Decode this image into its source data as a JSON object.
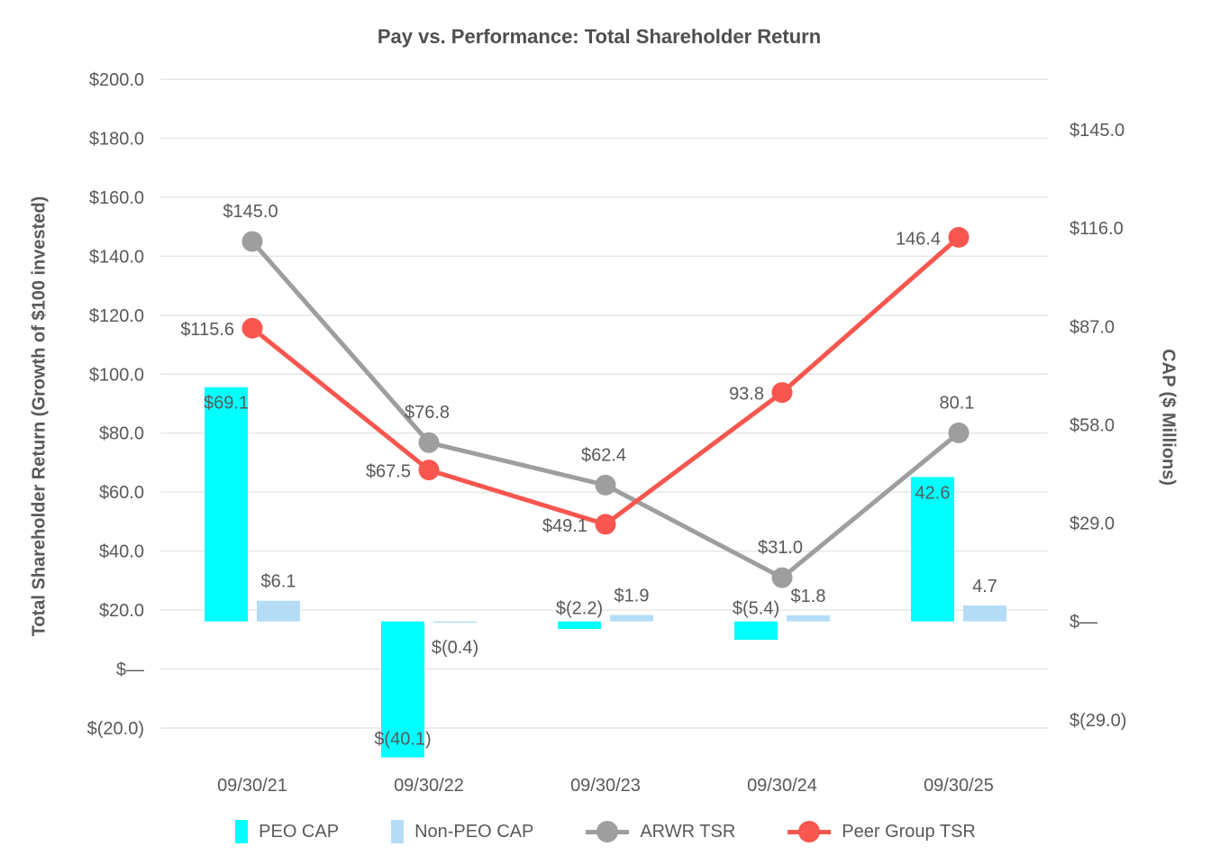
{
  "chart_data": {
    "type": "combo-bar-line",
    "title": "Pay vs. Performance: Total Shareholder Return",
    "categories": [
      "09/30/21",
      "09/30/22",
      "09/30/23",
      "09/30/24",
      "09/30/25"
    ],
    "left_axis": {
      "title": "Total Shareholder Return (Growth of $100 invested)",
      "range": [
        -20,
        200
      ],
      "ticks": [
        {
          "label": "$200.0",
          "value": 200
        },
        {
          "label": "$180.0",
          "value": 180
        },
        {
          "label": "$160.0",
          "value": 160
        },
        {
          "label": "$140.0",
          "value": 140
        },
        {
          "label": "$120.0",
          "value": 120
        },
        {
          "label": "$100.0",
          "value": 100
        },
        {
          "label": "$80.0",
          "value": 80
        },
        {
          "label": "$60.0",
          "value": 60
        },
        {
          "label": "$40.0",
          "value": 40
        },
        {
          "label": "$20.0",
          "value": 20
        },
        {
          "label": "$—",
          "value": 0
        },
        {
          "label": "$(20.0)",
          "value": -20
        }
      ],
      "grid": true
    },
    "right_axis": {
      "title": "CAP ($ Millions)",
      "range": [
        -29,
        145
      ],
      "ticks": [
        {
          "label": "$145.0",
          "value": 145
        },
        {
          "label": "$116.0",
          "value": 116
        },
        {
          "label": "$87.0",
          "value": 87
        },
        {
          "label": "$58.0",
          "value": 58
        },
        {
          "label": "$29.0",
          "value": 29
        },
        {
          "label": "$—",
          "value": 0
        },
        {
          "label": "$(29.0)",
          "value": -29
        }
      ],
      "grid": false
    },
    "bar_series": [
      {
        "name": "PEO CAP",
        "axis": "right",
        "color": "#00FFFF",
        "values": [
          69.1,
          -40.1,
          -2.2,
          -5.4,
          42.6
        ],
        "labels": [
          "$69.1",
          "$(40.1)",
          "$(2.2)",
          "$(5.4)",
          "42.6"
        ],
        "label_placement": [
          "inside-top",
          "inside-bottom",
          "above-zero",
          "above-zero",
          "inside-top"
        ]
      },
      {
        "name": "Non-PEO CAP",
        "axis": "right",
        "color": "#B5DCF7",
        "values": [
          6.1,
          -0.4,
          1.9,
          1.8,
          4.7
        ],
        "labels": [
          "$6.1",
          "$(0.4)",
          "$1.9",
          "$1.8",
          "4.7"
        ],
        "label_placement": [
          "above",
          "below",
          "above",
          "above",
          "above"
        ]
      }
    ],
    "line_series": [
      {
        "name": "ARWR TSR",
        "axis": "left",
        "color": "#9E9E9E",
        "values": [
          145.0,
          76.8,
          62.4,
          31.0,
          80.1
        ],
        "labels": [
          "$145.0",
          "$76.8",
          "$62.4",
          "$31.0",
          "80.1"
        ],
        "label_placement": [
          "above",
          "above",
          "above",
          "above",
          "above"
        ]
      },
      {
        "name": "Peer Group TSR",
        "axis": "left",
        "color": "#F8564F",
        "values": [
          115.6,
          67.5,
          49.1,
          93.8,
          146.4
        ],
        "labels": [
          "$115.6",
          "$67.5",
          "$49.1",
          "93.8",
          "146.4"
        ],
        "label_placement": [
          "left",
          "left",
          "left",
          "left",
          "left"
        ]
      }
    ],
    "legend": [
      {
        "label": "PEO CAP",
        "marker": "bar",
        "color": "#00FFFF"
      },
      {
        "label": "Non-PEO CAP",
        "marker": "bar",
        "color": "#B5DCF7"
      },
      {
        "label": "ARWR TSR",
        "marker": "line",
        "color": "#9E9E9E"
      },
      {
        "label": "Peer Group TSR",
        "marker": "line",
        "color": "#F8564F"
      }
    ],
    "colors": {
      "grid": "#E5E5E5",
      "text": "#595959",
      "title": "#4F4F4F"
    }
  }
}
